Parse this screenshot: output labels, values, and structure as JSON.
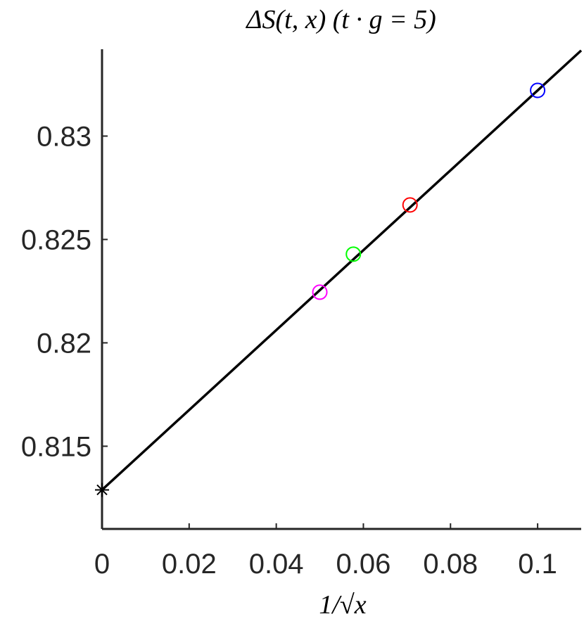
{
  "chart_data": {
    "type": "scatter",
    "title": "ΔS(t, x) (t · g = 5)",
    "x_label": "1/√x",
    "xlim": [
      0,
      0.11
    ],
    "ylim": [
      0.811,
      0.8342
    ],
    "xticks": [
      0,
      0.02,
      0.04,
      0.06,
      0.08,
      0.1
    ],
    "yticks": [
      0.815,
      0.82,
      0.825,
      0.83
    ],
    "series": [
      {
        "marker": "line",
        "color": "#000000",
        "x": [
          0,
          0.11
        ],
        "values": [
          0.81289,
          0.83414
        ]
      },
      {
        "marker": "*",
        "color": "#000000",
        "x": [
          0
        ],
        "values": [
          0.81289
        ]
      },
      {
        "marker": "o",
        "color": "#ff00ff",
        "x": [
          0.05
        ],
        "values": [
          0.82245
        ]
      },
      {
        "marker": "o",
        "color": "#00ff00",
        "x": [
          0.0577
        ],
        "values": [
          0.82429
        ]
      },
      {
        "marker": "o",
        "color": "#ff0000",
        "x": [
          0.0707
        ],
        "values": [
          0.82667
        ]
      },
      {
        "marker": "o",
        "color": "#0000ff",
        "x": [
          0.1
        ],
        "values": [
          0.83221
        ]
      }
    ]
  }
}
